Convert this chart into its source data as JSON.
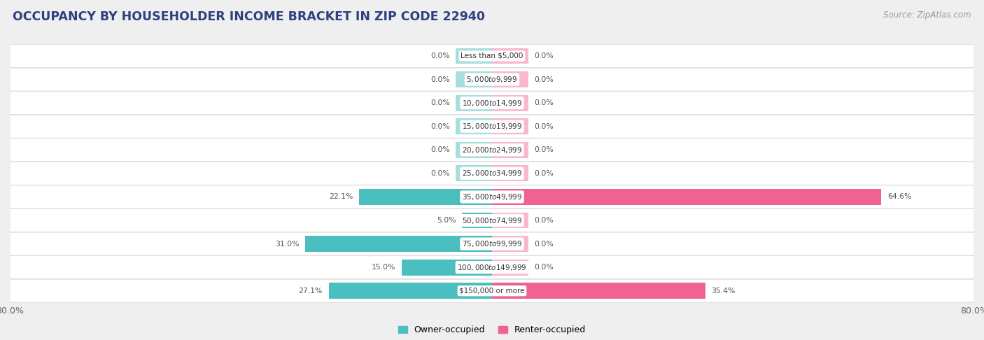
{
  "title": "OCCUPANCY BY HOUSEHOLDER INCOME BRACKET IN ZIP CODE 22940",
  "source": "Source: ZipAtlas.com",
  "categories": [
    "Less than $5,000",
    "$5,000 to $9,999",
    "$10,000 to $14,999",
    "$15,000 to $19,999",
    "$20,000 to $24,999",
    "$25,000 to $34,999",
    "$35,000 to $49,999",
    "$50,000 to $74,999",
    "$75,000 to $99,999",
    "$100,000 to $149,999",
    "$150,000 or more"
  ],
  "owner_values": [
    0.0,
    0.0,
    0.0,
    0.0,
    0.0,
    0.0,
    22.1,
    5.0,
    31.0,
    15.0,
    27.1
  ],
  "renter_values": [
    0.0,
    0.0,
    0.0,
    0.0,
    0.0,
    0.0,
    64.6,
    0.0,
    0.0,
    0.0,
    35.4
  ],
  "owner_color": "#4bbfbf",
  "renter_color": "#f06292",
  "owner_color_zero": "#a8dede",
  "renter_color_zero": "#f9b8d0",
  "bg_color": "#efefef",
  "row_bg_color": "#ffffff",
  "row_border_color": "#d8d8d8",
  "title_color": "#2e4080",
  "source_color": "#999999",
  "val_label_color": "#555555",
  "axis_limit": 80.0,
  "bar_height": 0.68,
  "zero_bar_width": 6.0,
  "legend_labels": [
    "Owner-occupied",
    "Renter-occupied"
  ],
  "cat_label_fontsize": 7.5,
  "val_label_fontsize": 7.8
}
